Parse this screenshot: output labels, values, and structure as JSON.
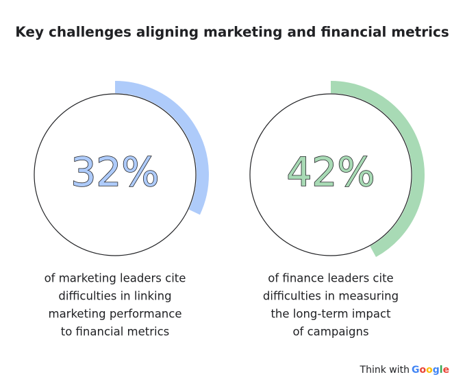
{
  "title": "Key challenges aligning marketing and financial metrics",
  "chart_data": [
    {
      "type": "gauge",
      "values": [
        32
      ],
      "value_labels": [
        "32%"
      ],
      "color": "#aecbfa",
      "ylim": [
        0,
        100
      ],
      "caption": [
        "of marketing leaders cite",
        "difficulties in linking",
        "marketing performance",
        "to financial metrics"
      ]
    },
    {
      "type": "gauge",
      "values": [
        42
      ],
      "value_labels": [
        "42%"
      ],
      "color": "#a8dab5",
      "ylim": [
        0,
        100
      ],
      "caption": [
        "of finance leaders cite",
        "difficulties in measuring",
        "the long-term impact",
        "of campaigns"
      ]
    }
  ],
  "footer": {
    "text": "Think with",
    "brand": "Google"
  }
}
